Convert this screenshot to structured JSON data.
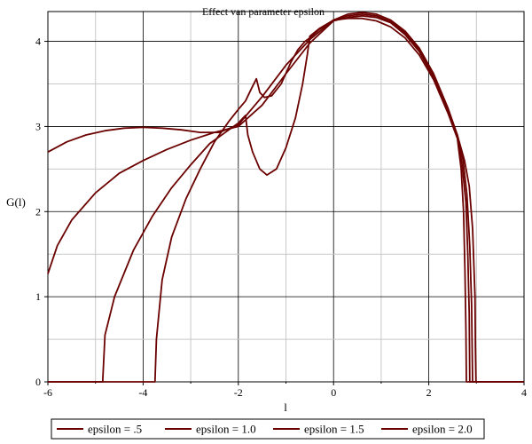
{
  "chart_data": {
    "type": "line",
    "title": "Effect van parameter epsilon",
    "xlabel": "l",
    "ylabel": "G(l)",
    "xlim": [
      -6,
      4
    ],
    "ylim": [
      0,
      4.35
    ],
    "x_ticks": [
      -6,
      -4,
      -2,
      0,
      2,
      4
    ],
    "y_ticks": [
      0,
      1,
      2,
      3,
      4
    ],
    "grid": true,
    "legend_position": "bottom",
    "line_color": "#6b0000",
    "series": [
      {
        "name": "epsilon = .5",
        "points": [
          [
            -6,
            0
          ],
          [
            -3.75,
            0
          ],
          [
            -3.72,
            0.5
          ],
          [
            -3.6,
            1.2
          ],
          [
            -3.4,
            1.7
          ],
          [
            -3.1,
            2.15
          ],
          [
            -2.8,
            2.5
          ],
          [
            -2.5,
            2.82
          ],
          [
            -2.2,
            3.06
          ],
          [
            -2.0,
            3.2
          ],
          [
            -1.85,
            3.3
          ],
          [
            -1.72,
            3.45
          ],
          [
            -1.62,
            3.56
          ],
          [
            -1.55,
            3.4
          ],
          [
            -1.45,
            3.34
          ],
          [
            -1.3,
            3.36
          ],
          [
            -1.1,
            3.5
          ],
          [
            -0.9,
            3.75
          ],
          [
            -0.75,
            3.9
          ],
          [
            -0.6,
            4.0
          ],
          [
            -0.5,
            4.04
          ],
          [
            -0.3,
            4.14
          ],
          [
            0,
            4.25
          ],
          [
            0.3,
            4.3
          ],
          [
            0.6,
            4.32
          ],
          [
            0.9,
            4.3
          ],
          [
            1.2,
            4.23
          ],
          [
            1.5,
            4.1
          ],
          [
            1.8,
            3.9
          ],
          [
            2.1,
            3.6
          ],
          [
            2.4,
            3.2
          ],
          [
            2.6,
            2.9
          ],
          [
            2.75,
            2.6
          ],
          [
            2.85,
            2.3
          ],
          [
            2.92,
            1.8
          ],
          [
            2.97,
            1.0
          ],
          [
            2.98,
            0.4
          ],
          [
            2.99,
            0
          ],
          [
            4,
            0
          ]
        ]
      },
      {
        "name": "epsilon = 1.0",
        "points": [
          [
            -6,
            0
          ],
          [
            -4.85,
            0
          ],
          [
            -4.8,
            0.55
          ],
          [
            -4.6,
            1.0
          ],
          [
            -4.2,
            1.55
          ],
          [
            -3.8,
            1.95
          ],
          [
            -3.4,
            2.28
          ],
          [
            -3.0,
            2.55
          ],
          [
            -2.6,
            2.8
          ],
          [
            -2.2,
            2.96
          ],
          [
            -2.0,
            3.04
          ],
          [
            -1.9,
            3.1
          ],
          [
            -1.85,
            3.13
          ],
          [
            -1.8,
            2.9
          ],
          [
            -1.7,
            2.7
          ],
          [
            -1.55,
            2.5
          ],
          [
            -1.4,
            2.43
          ],
          [
            -1.2,
            2.5
          ],
          [
            -1.0,
            2.75
          ],
          [
            -0.8,
            3.1
          ],
          [
            -0.65,
            3.5
          ],
          [
            -0.55,
            3.85
          ],
          [
            -0.5,
            4.06
          ],
          [
            -0.3,
            4.15
          ],
          [
            0,
            4.25
          ],
          [
            0.3,
            4.32
          ],
          [
            0.6,
            4.34
          ],
          [
            0.9,
            4.32
          ],
          [
            1.2,
            4.25
          ],
          [
            1.5,
            4.12
          ],
          [
            1.8,
            3.92
          ],
          [
            2.1,
            3.62
          ],
          [
            2.4,
            3.22
          ],
          [
            2.6,
            2.9
          ],
          [
            2.72,
            2.6
          ],
          [
            2.8,
            2.2
          ],
          [
            2.86,
            1.6
          ],
          [
            2.9,
            0.9
          ],
          [
            2.91,
            0.4
          ],
          [
            2.92,
            0
          ],
          [
            4,
            0
          ]
        ]
      },
      {
        "name": "epsilon = 1.5",
        "points": [
          [
            -6,
            1.27
          ],
          [
            -5.8,
            1.6
          ],
          [
            -5.5,
            1.9
          ],
          [
            -5.0,
            2.22
          ],
          [
            -4.5,
            2.45
          ],
          [
            -4.0,
            2.6
          ],
          [
            -3.5,
            2.73
          ],
          [
            -3.0,
            2.84
          ],
          [
            -2.5,
            2.93
          ],
          [
            -2.0,
            3.0
          ],
          [
            -1.5,
            3.25
          ],
          [
            -1.0,
            3.62
          ],
          [
            -0.5,
            3.98
          ],
          [
            0,
            4.24
          ],
          [
            0.3,
            4.28
          ],
          [
            0.6,
            4.3
          ],
          [
            0.9,
            4.28
          ],
          [
            1.2,
            4.22
          ],
          [
            1.5,
            4.08
          ],
          [
            1.8,
            3.88
          ],
          [
            2.1,
            3.58
          ],
          [
            2.4,
            3.18
          ],
          [
            2.6,
            2.88
          ],
          [
            2.7,
            2.55
          ],
          [
            2.78,
            2.1
          ],
          [
            2.82,
            1.5
          ],
          [
            2.85,
            0.8
          ],
          [
            2.86,
            0
          ],
          [
            4,
            0
          ]
        ]
      },
      {
        "name": "epsilon = 2.0",
        "points": [
          [
            -6,
            2.7
          ],
          [
            -5.6,
            2.82
          ],
          [
            -5.2,
            2.9
          ],
          [
            -4.8,
            2.95
          ],
          [
            -4.4,
            2.98
          ],
          [
            -4.0,
            2.99
          ],
          [
            -3.6,
            2.98
          ],
          [
            -3.2,
            2.96
          ],
          [
            -2.8,
            2.93
          ],
          [
            -2.4,
            2.93
          ],
          [
            -2.0,
            3.02
          ],
          [
            -1.5,
            3.35
          ],
          [
            -1.0,
            3.72
          ],
          [
            -0.5,
            4.02
          ],
          [
            0,
            4.25
          ],
          [
            0.3,
            4.27
          ],
          [
            0.6,
            4.27
          ],
          [
            0.9,
            4.24
          ],
          [
            1.2,
            4.17
          ],
          [
            1.5,
            4.04
          ],
          [
            1.8,
            3.84
          ],
          [
            2.1,
            3.55
          ],
          [
            2.4,
            3.16
          ],
          [
            2.6,
            2.86
          ],
          [
            2.68,
            2.5
          ],
          [
            2.73,
            2.0
          ],
          [
            2.76,
            1.3
          ],
          [
            2.78,
            0.6
          ],
          [
            2.79,
            0
          ],
          [
            4,
            0
          ]
        ]
      }
    ]
  }
}
